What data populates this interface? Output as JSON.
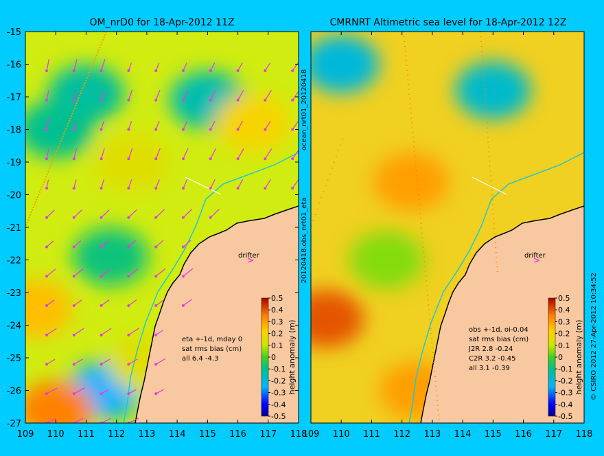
{
  "chart_data": [
    {
      "type": "heatmap",
      "title": "OM_nrD0 for 18-Apr-2012 11Z",
      "x_ticks": [
        "109",
        "110",
        "111",
        "112",
        "113",
        "114",
        "115",
        "116",
        "117",
        "118"
      ],
      "y_ticks": [
        "-15",
        "-16",
        "-17",
        "-18",
        "-19",
        "-20",
        "-21",
        "-22",
        "-23",
        "-24",
        "-25",
        "-26",
        "-27"
      ],
      "xlim": [
        109,
        118
      ],
      "ylim": [
        -27,
        -15
      ],
      "colorbar": {
        "label": "height anomaly (m)",
        "ticks": [
          "0.5",
          "0.4",
          "0.3",
          "0.2",
          "0.1",
          "0",
          "-0.1",
          "-0.2",
          "-0.3",
          "-0.4",
          "-0.5"
        ],
        "range": [
          -0.5,
          0.5
        ]
      },
      "annotation_lines": [
        "eta +-1d, mday 0",
        "sat rms bias (cm)",
        "all 6.4 -4.3"
      ],
      "drifter_label": "drifter",
      "field": [
        {
          "x": 111.0,
          "y": -16.9,
          "value": -0.12
        },
        {
          "x": 115.0,
          "y": -17.1,
          "value": -0.14
        },
        {
          "x": 110.0,
          "y": -18.0,
          "value": -0.1
        },
        {
          "x": 111.8,
          "y": -21.9,
          "value": -0.08
        },
        {
          "x": 111.6,
          "y": -26.0,
          "value": -0.25
        },
        {
          "x": 110.0,
          "y": -26.6,
          "value": 0.35
        },
        {
          "x": 109.3,
          "y": -23.5,
          "value": 0.25
        },
        {
          "x": 112.5,
          "y": -19.0,
          "value": 0.15
        },
        {
          "x": 116.5,
          "y": -17.8,
          "value": 0.2
        },
        {
          "x": 113.0,
          "y": -25.2,
          "value": 0.15
        }
      ]
    },
    {
      "type": "heatmap",
      "title": "CMRNRT Altimetric sea level  for 18-Apr-2012 12Z",
      "x_ticks": [
        "109",
        "110",
        "111",
        "112",
        "113",
        "114",
        "115",
        "116",
        "117",
        "118"
      ],
      "xlim": [
        109,
        118
      ],
      "ylim": [
        -27,
        -15
      ],
      "colorbar": {
        "label": "height anomaly (m)",
        "ticks": [
          "0.5",
          "0.4",
          "0.3",
          "0.2",
          "0.1",
          "0",
          "-0.1",
          "-0.2",
          "-0.3",
          "-0.4",
          "-0.5"
        ],
        "range": [
          -0.5,
          0.5
        ]
      },
      "annotation_lines": [
        "obs +-1d, oi-0.04",
        "sat rms bias (cm)",
        "J2R    2.8 -0.24",
        "C2R    3.2 -0.45",
        "all 3.1 -0.39"
      ],
      "drifter_label": "drifter",
      "field": [
        {
          "x": 110.0,
          "y": -16.0,
          "value": -0.2
        },
        {
          "x": 115.0,
          "y": -16.8,
          "value": -0.18
        },
        {
          "x": 112.3,
          "y": -19.6,
          "value": 0.3
        },
        {
          "x": 109.5,
          "y": -23.8,
          "value": 0.4
        },
        {
          "x": 111.5,
          "y": -22.0,
          "value": 0.05
        },
        {
          "x": 112.5,
          "y": -26.0,
          "value": 0.3
        }
      ]
    }
  ],
  "side_labels": {
    "middle": "20120418.obs_nrt01_eta",
    "middle_top": "ocean_nrt01_20120418",
    "right": "© CSIRO 2012   27-Apr-2012 10:34:52"
  }
}
